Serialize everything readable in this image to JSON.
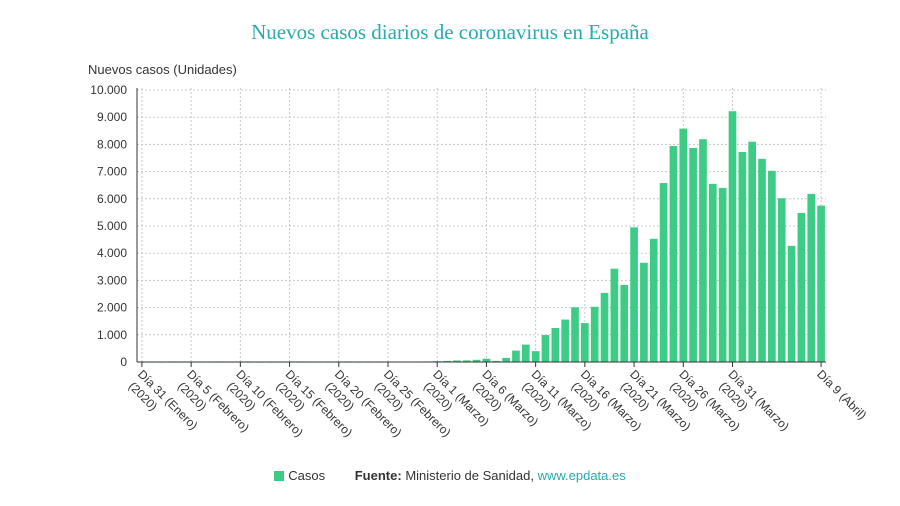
{
  "title": "Nuevos casos diarios de coronavirus en España",
  "colors": {
    "bar": "#3dcc85",
    "title": "#27aab0",
    "grid": "#c8c8c8",
    "link": "#27aab0"
  },
  "legend": {
    "series_label": "Casos"
  },
  "source": {
    "label": "Fuente:",
    "text": "Ministerio de Sanidad,",
    "link": "www.epdata.es"
  },
  "chart_data": {
    "type": "bar",
    "title": "Nuevos casos diarios de coronavirus en España",
    "ylabel": "Nuevos casos (Unidades)",
    "xlabel": "",
    "ylim": [
      0,
      10000
    ],
    "yticks": [
      {
        "value": 0,
        "label": "0"
      },
      {
        "value": 1000,
        "label": "1.000"
      },
      {
        "value": 2000,
        "label": "2.000"
      },
      {
        "value": 3000,
        "label": "3.000"
      },
      {
        "value": 4000,
        "label": "4.000"
      },
      {
        "value": 5000,
        "label": "5.000"
      },
      {
        "value": 6000,
        "label": "6.000"
      },
      {
        "value": 7000,
        "label": "7.000"
      },
      {
        "value": 8000,
        "label": "8.000"
      },
      {
        "value": 9000,
        "label": "9.000"
      },
      {
        "value": 10000,
        "label": "10.000"
      }
    ],
    "xticks": [
      {
        "index": 0,
        "line1": "Día 31 (Enero)",
        "line2": "(2020)"
      },
      {
        "index": 5,
        "line1": "Día 5 (Febrero)",
        "line2": "(2020)"
      },
      {
        "index": 10,
        "line1": "Día 10 (Febrero)",
        "line2": "(2020)"
      },
      {
        "index": 15,
        "line1": "Día 15 (Febrero)",
        "line2": "(2020)"
      },
      {
        "index": 20,
        "line1": "Día 20 (Febrero)",
        "line2": "(2020)"
      },
      {
        "index": 25,
        "line1": "Día 25 (Febrero)",
        "line2": "(2020)"
      },
      {
        "index": 30,
        "line1": "Día 1 (Marzo)",
        "line2": "(2020)"
      },
      {
        "index": 35,
        "line1": "Día 6 (Marzo)",
        "line2": "(2020)"
      },
      {
        "index": 40,
        "line1": "Día 11 (Marzo)",
        "line2": "(2020)"
      },
      {
        "index": 45,
        "line1": "Día 16 (Marzo)",
        "line2": "(2020)"
      },
      {
        "index": 50,
        "line1": "Día 21 (Marzo)",
        "line2": "(2020)"
      },
      {
        "index": 55,
        "line1": "Día 26 (Marzo)",
        "line2": "(2020)"
      },
      {
        "index": 60,
        "line1": "Día 31 (Marzo)",
        "line2": "(2020)"
      },
      {
        "index": 69,
        "line1": "Día 9 (Abril)",
        "line2": ""
      }
    ],
    "series": [
      {
        "name": "Casos",
        "values": [
          1,
          0,
          0,
          0,
          0,
          0,
          0,
          0,
          0,
          1,
          0,
          0,
          0,
          0,
          0,
          0,
          0,
          0,
          0,
          0,
          0,
          0,
          0,
          0,
          1,
          4,
          6,
          10,
          13,
          21,
          30,
          40,
          55,
          60,
          80,
          120,
          40,
          150,
          420,
          640,
          400,
          990,
          1250,
          1560,
          2010,
          1430,
          2030,
          2540,
          3430,
          2830,
          4950,
          3650,
          4530,
          6580,
          7940,
          8580,
          7870,
          8190,
          6550,
          6400,
          9220,
          7720,
          8100,
          7470,
          7030,
          6020,
          4270,
          5480,
          6180,
          5750
        ]
      }
    ]
  }
}
